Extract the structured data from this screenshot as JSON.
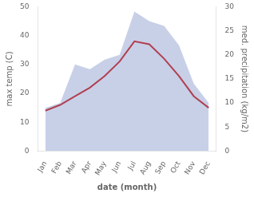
{
  "chart_data": {
    "type": "line",
    "categories": [
      "Jan",
      "Feb",
      "Mar",
      "Apr",
      "May",
      "Jun",
      "Jul",
      "Aug",
      "Sep",
      "Oct",
      "Nov",
      "Dec"
    ],
    "xlabel": "date (month)",
    "ylabel": "max temp (C)",
    "y2label": "med. precipitation (kg/m2)",
    "series": [
      {
        "type": "area",
        "axis": "y2",
        "color": "#c8d0e8",
        "values": [
          9,
          10,
          18,
          17,
          19,
          20,
          29,
          27,
          26,
          22,
          14,
          10
        ]
      },
      {
        "type": "line",
        "color": "#b04050",
        "values": [
          14,
          16,
          19,
          22,
          26,
          31,
          38,
          37,
          32,
          26,
          19,
          15
        ]
      }
    ],
    "ylim": [
      0,
      50
    ],
    "yticks": [
      0,
      10,
      20,
      30,
      40,
      50
    ],
    "y2lim": [
      0,
      30
    ],
    "y2ticks": [
      0,
      5,
      10,
      15,
      20,
      25,
      30
    ],
    "grid": false
  }
}
